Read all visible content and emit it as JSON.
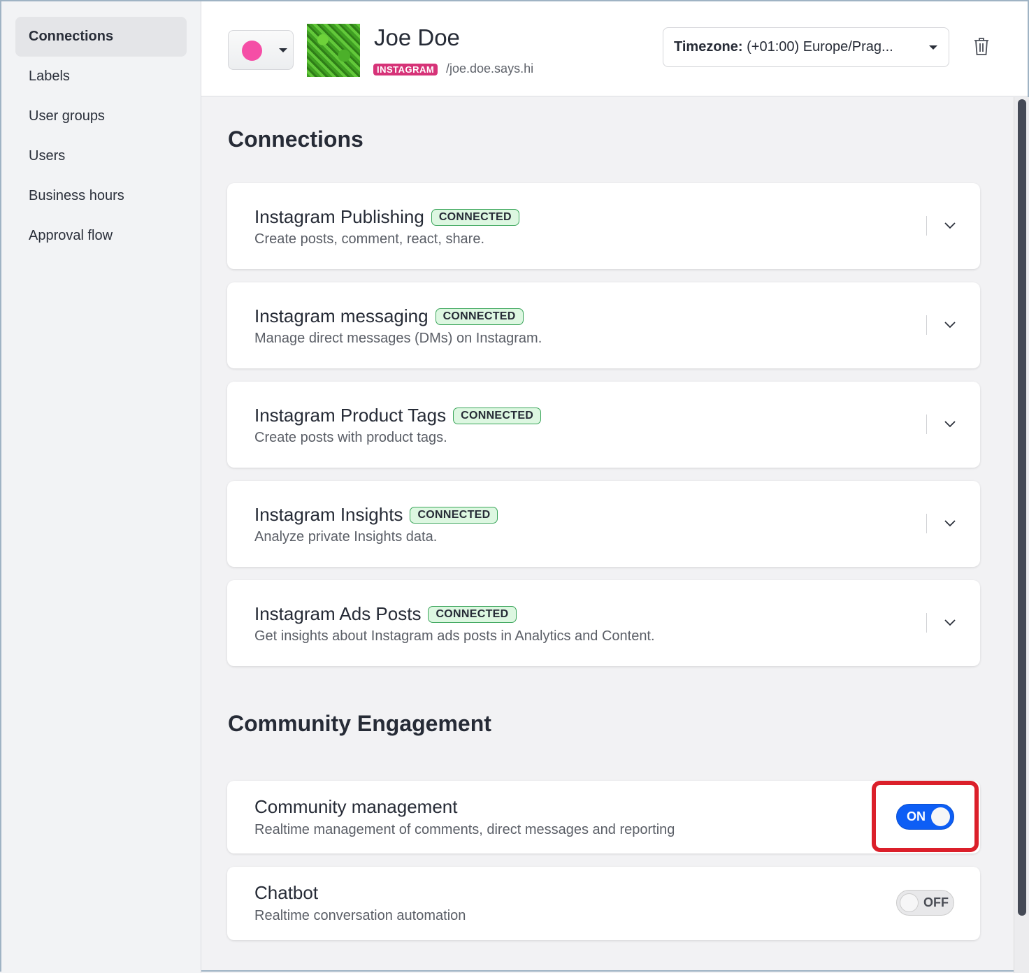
{
  "sidebar": {
    "items": [
      {
        "label": "Connections",
        "active": true
      },
      {
        "label": "Labels"
      },
      {
        "label": "User groups"
      },
      {
        "label": "Users"
      },
      {
        "label": "Business hours"
      },
      {
        "label": "Approval flow"
      }
    ]
  },
  "header": {
    "profile_color": "#f54ea6",
    "name": "Joe Doe",
    "platform_badge": "INSTAGRAM",
    "handle": "/joe.doe.says.hi",
    "timezone_label": "Timezone:",
    "timezone_value": "(+01:00) Europe/Prag...",
    "delete_icon": "trash-icon"
  },
  "connections": {
    "title": "Connections",
    "items": [
      {
        "title": "Instagram Publishing",
        "status": "CONNECTED",
        "description": "Create posts, comment, react, share."
      },
      {
        "title": "Instagram messaging",
        "status": "CONNECTED",
        "description": "Manage direct messages (DMs) on Instagram."
      },
      {
        "title": "Instagram Product Tags",
        "status": "CONNECTED",
        "description": "Create posts with product tags."
      },
      {
        "title": "Instagram Insights",
        "status": "CONNECTED",
        "description": "Analyze private Insights data."
      },
      {
        "title": "Instagram Ads Posts",
        "status": "CONNECTED",
        "description": "Get insights about Instagram ads posts in Analytics and Content."
      }
    ]
  },
  "community": {
    "title": "Community Engagement",
    "items": [
      {
        "title": "Community management",
        "description": "Realtime management of comments, direct messages and reporting",
        "toggle": "ON",
        "enabled": true
      },
      {
        "title": "Chatbot",
        "description": "Realtime conversation automation",
        "toggle": "OFF",
        "enabled": false
      }
    ]
  },
  "colors": {
    "accent": "#0d5ef5",
    "highlight": "#db1f2a",
    "badge_bg": "#ddf7e1",
    "instagram": "#d63378"
  }
}
